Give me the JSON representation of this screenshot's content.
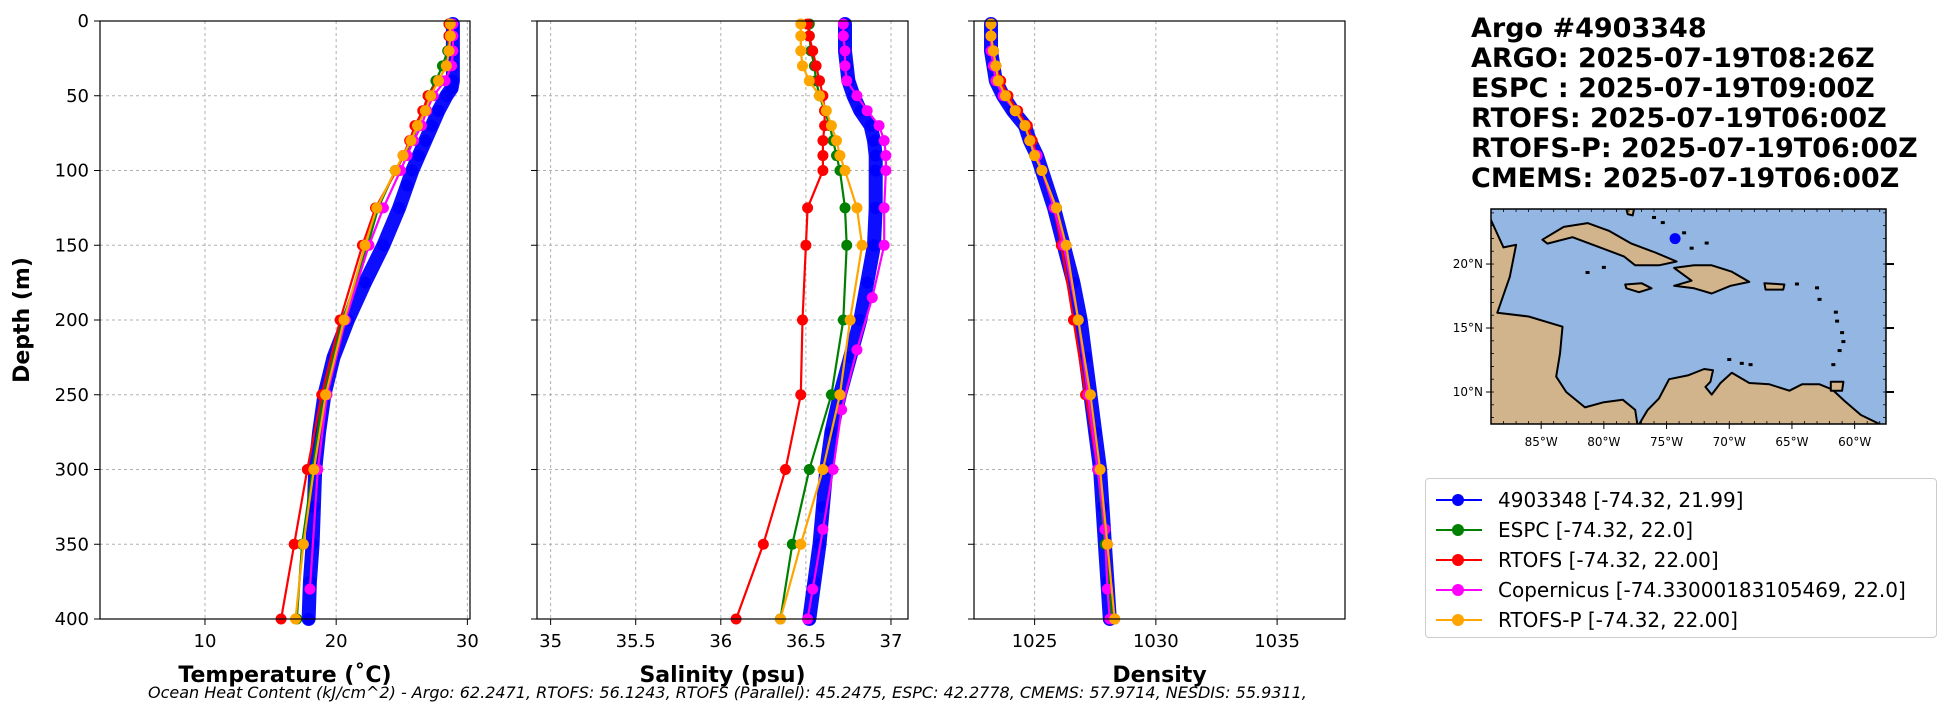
{
  "title_lines": [
    "Argo #4903348",
    "ARGO: 2025-07-19T08:26Z",
    "ESPC : 2025-07-19T09:00Z",
    "RTOFS: 2025-07-19T06:00Z",
    "RTOFS-P: 2025-07-19T06:00Z",
    "CMEMS: 2025-07-19T06:00Z"
  ],
  "footer_text": "Ocean Heat Content (kJ/cm^2) - Argo: 62.2471,  RTOFS: 56.1243,  RTOFS (Parallel): 45.2475,  ESPC: 42.2778,  CMEMS: 57.9714,  NESDIS: 55.9311,",
  "legend": [
    {
      "label": "4903348 [-74.32, 21.99]",
      "color": "#0000ff"
    },
    {
      "label": "ESPC [-74.32, 22.0]",
      "color": "#008000"
    },
    {
      "label": "RTOFS [-74.32, 22.00]",
      "color": "#ff0000"
    },
    {
      "label": "Copernicus [-74.33000183105469, 22.0]",
      "color": "#ff00ff"
    },
    {
      "label": "RTOFS-P [-74.32, 22.00]",
      "color": "#ffa500"
    }
  ],
  "map": {
    "lat_labels": [
      "20°N",
      "15°N",
      "10°N"
    ],
    "lon_labels": [
      "85°W",
      "80°W",
      "75°W",
      "70°W",
      "65°W",
      "60°W"
    ],
    "extent": {
      "lon": [
        -89,
        -57.5
      ],
      "lat": [
        7.5,
        24.3
      ]
    },
    "float_position": {
      "lon": -74.32,
      "lat": 21.99
    },
    "ocean_color": "#94b6e2",
    "land_color": "#d2b48c"
  },
  "chart_data": [
    {
      "type": "line",
      "title": "",
      "xlabel": "Temperature (˚C)",
      "ylabel": "Depth (m)",
      "xlim": [
        2,
        30.2
      ],
      "ylim": [
        400,
        0
      ],
      "xticks": [
        10,
        20,
        30
      ],
      "yticks": [
        0,
        50,
        100,
        150,
        200,
        250,
        300,
        350,
        400
      ],
      "series": [
        {
          "name": "4903348",
          "color": "#0000ff",
          "thick": true,
          "depth": [
            2,
            10,
            20,
            30,
            40,
            45,
            50,
            60,
            70,
            80,
            90,
            100,
            110,
            125,
            150,
            175,
            200,
            225,
            250,
            275,
            300,
            325,
            350,
            375,
            400
          ],
          "values": [
            28.9,
            28.9,
            28.9,
            28.9,
            28.9,
            28.8,
            28.4,
            27.8,
            27.3,
            26.8,
            26.3,
            25.8,
            25.4,
            24.8,
            23.6,
            22.2,
            20.9,
            19.8,
            19.1,
            18.7,
            18.4,
            18.3,
            18.2,
            18.0,
            17.9
          ]
        },
        {
          "name": "ESPC",
          "color": "#008000",
          "depth": [
            2,
            10,
            20,
            30,
            40,
            50,
            60,
            70,
            80,
            90,
            100,
            125,
            150,
            200,
            250,
            300,
            350,
            400
          ],
          "values": [
            28.6,
            28.6,
            28.5,
            28.1,
            27.6,
            27.0,
            26.7,
            26.2,
            25.8,
            25.2,
            24.5,
            23.2,
            22.4,
            20.5,
            19.0,
            18.2,
            17.4,
            17.0
          ]
        },
        {
          "name": "RTOFS",
          "color": "#ff0000",
          "depth": [
            2,
            10,
            20,
            30,
            40,
            50,
            60,
            70,
            80,
            90,
            100,
            125,
            150,
            200,
            250,
            300,
            350,
            400
          ],
          "values": [
            28.6,
            28.6,
            28.6,
            28.4,
            27.8,
            27.0,
            26.6,
            26.0,
            25.6,
            25.1,
            24.6,
            23.0,
            22.0,
            20.3,
            18.9,
            17.8,
            16.8,
            15.8
          ]
        },
        {
          "name": "Copernicus",
          "color": "#ff00ff",
          "depth": [
            2,
            10,
            20,
            30,
            40,
            50,
            60,
            70,
            80,
            90,
            100,
            125,
            150,
            200,
            250,
            300,
            380
          ],
          "values": [
            28.9,
            28.9,
            28.9,
            28.8,
            28.3,
            27.4,
            26.9,
            26.5,
            25.9,
            25.4,
            24.9,
            23.6,
            22.5,
            20.7,
            19.3,
            18.6,
            18.0
          ]
        },
        {
          "name": "RTOFS-P",
          "color": "#ffa500",
          "depth": [
            2,
            10,
            20,
            30,
            40,
            50,
            60,
            70,
            80,
            90,
            100,
            125,
            150,
            200,
            250,
            300,
            350,
            400
          ],
          "values": [
            28.7,
            28.7,
            28.6,
            28.4,
            27.8,
            27.2,
            26.8,
            26.2,
            25.7,
            25.1,
            24.5,
            23.1,
            22.2,
            20.6,
            19.2,
            18.3,
            17.5,
            16.9
          ]
        }
      ]
    },
    {
      "type": "line",
      "title": "",
      "xlabel": "Salinity (psu)",
      "ylabel": "",
      "xlim": [
        34.92,
        37.1
      ],
      "ylim": [
        400,
        0
      ],
      "xticks": [
        35.0,
        35.5,
        36.0,
        36.5,
        37.0
      ],
      "yticks": [
        0,
        50,
        100,
        150,
        200,
        250,
        300,
        350,
        400
      ],
      "series": [
        {
          "name": "4903348",
          "color": "#0000ff",
          "thick": true,
          "depth": [
            2,
            10,
            20,
            30,
            40,
            50,
            60,
            70,
            80,
            90,
            100,
            125,
            150,
            175,
            200,
            225,
            250,
            275,
            300,
            325,
            350,
            375,
            400
          ],
          "values": [
            36.73,
            36.73,
            36.73,
            36.74,
            36.75,
            36.78,
            36.82,
            36.88,
            36.9,
            36.91,
            36.91,
            36.91,
            36.9,
            36.86,
            36.82,
            36.76,
            36.7,
            36.65,
            36.62,
            36.6,
            36.58,
            36.55,
            36.52
          ]
        },
        {
          "name": "ESPC",
          "color": "#008000",
          "depth": [
            2,
            10,
            20,
            30,
            40,
            50,
            60,
            70,
            80,
            90,
            100,
            125,
            150,
            200,
            250,
            300,
            350,
            400
          ],
          "values": [
            36.52,
            36.52,
            36.53,
            36.55,
            36.56,
            36.58,
            36.61,
            36.64,
            36.66,
            36.68,
            36.7,
            36.73,
            36.74,
            36.72,
            36.65,
            36.52,
            36.42,
            36.35
          ]
        },
        {
          "name": "RTOFS",
          "color": "#ff0000",
          "depth": [
            2,
            10,
            20,
            30,
            40,
            50,
            60,
            70,
            80,
            90,
            100,
            125,
            150,
            200,
            250,
            300,
            350,
            400
          ],
          "values": [
            36.51,
            36.52,
            36.54,
            36.56,
            36.58,
            36.6,
            36.61,
            36.61,
            36.6,
            36.6,
            36.6,
            36.51,
            36.5,
            36.48,
            36.47,
            36.38,
            36.25,
            36.09
          ]
        },
        {
          "name": "Copernicus",
          "color": "#ff00ff",
          "depth": [
            2,
            10,
            20,
            30,
            40,
            50,
            60,
            70,
            80,
            90,
            100,
            125,
            150,
            185,
            220,
            260,
            300,
            340,
            380,
            400
          ],
          "values": [
            36.72,
            36.72,
            36.73,
            36.73,
            36.74,
            36.8,
            36.86,
            36.93,
            36.96,
            36.97,
            36.97,
            36.96,
            36.96,
            36.89,
            36.8,
            36.71,
            36.66,
            36.6,
            36.54,
            36.51
          ]
        },
        {
          "name": "RTOFS-P",
          "color": "#ffa500",
          "depth": [
            2,
            10,
            20,
            30,
            40,
            50,
            60,
            70,
            80,
            90,
            100,
            125,
            150,
            200,
            250,
            300,
            350,
            400
          ],
          "values": [
            36.47,
            36.47,
            36.47,
            36.48,
            36.52,
            36.58,
            36.62,
            36.65,
            36.68,
            36.7,
            36.73,
            36.8,
            36.83,
            36.76,
            36.7,
            36.6,
            36.47,
            36.35
          ]
        }
      ]
    },
    {
      "type": "line",
      "title": "",
      "xlabel": "Density",
      "ylabel": "",
      "xlim": [
        1022.5,
        1037.8
      ],
      "ylim": [
        400,
        0
      ],
      "xticks": [
        1025,
        1030,
        1035
      ],
      "yticks": [
        0,
        50,
        100,
        150,
        200,
        250,
        300,
        350,
        400
      ],
      "series": [
        {
          "name": "4903348",
          "color": "#0000ff",
          "thick": true,
          "depth": [
            2,
            10,
            20,
            30,
            40,
            50,
            60,
            70,
            80,
            90,
            100,
            125,
            150,
            175,
            200,
            225,
            250,
            275,
            300,
            325,
            350,
            375,
            400
          ],
          "values": [
            1023.2,
            1023.2,
            1023.2,
            1023.3,
            1023.4,
            1023.7,
            1024.1,
            1024.6,
            1024.8,
            1025.1,
            1025.3,
            1025.8,
            1026.2,
            1026.6,
            1026.9,
            1027.1,
            1027.3,
            1027.5,
            1027.7,
            1027.8,
            1027.9,
            1028.0,
            1028.1
          ]
        },
        {
          "name": "ESPC",
          "color": "#008000",
          "depth": [
            2,
            10,
            20,
            30,
            40,
            50,
            60,
            70,
            80,
            90,
            100,
            125,
            150,
            200,
            250,
            300,
            350,
            400
          ],
          "values": [
            1023.2,
            1023.2,
            1023.3,
            1023.4,
            1023.5,
            1023.8,
            1024.2,
            1024.6,
            1024.8,
            1025.0,
            1025.3,
            1025.9,
            1026.2,
            1026.8,
            1027.2,
            1027.6,
            1027.9,
            1028.2
          ]
        },
        {
          "name": "RTOFS",
          "color": "#ff0000",
          "depth": [
            2,
            10,
            20,
            30,
            40,
            50,
            60,
            70,
            80,
            90,
            100,
            125,
            150,
            200,
            250,
            300,
            350,
            400
          ],
          "values": [
            1023.2,
            1023.2,
            1023.3,
            1023.4,
            1023.6,
            1023.9,
            1024.3,
            1024.7,
            1024.9,
            1025.1,
            1025.3,
            1025.8,
            1026.1,
            1026.6,
            1027.1,
            1027.6,
            1028.0,
            1028.3
          ]
        },
        {
          "name": "Copernicus",
          "color": "#ff00ff",
          "depth": [
            2,
            10,
            20,
            30,
            40,
            50,
            60,
            70,
            80,
            90,
            100,
            125,
            150,
            200,
            250,
            300,
            340,
            380,
            400
          ],
          "values": [
            1023.2,
            1023.2,
            1023.2,
            1023.3,
            1023.4,
            1023.7,
            1024.2,
            1024.6,
            1024.8,
            1025.1,
            1025.3,
            1025.8,
            1026.2,
            1026.8,
            1027.2,
            1027.6,
            1027.9,
            1028.0,
            1028.1
          ]
        },
        {
          "name": "RTOFS-P",
          "color": "#ffa500",
          "depth": [
            2,
            10,
            20,
            30,
            40,
            50,
            60,
            70,
            80,
            90,
            100,
            125,
            150,
            200,
            250,
            300,
            350,
            400
          ],
          "values": [
            1023.2,
            1023.2,
            1023.3,
            1023.4,
            1023.5,
            1023.8,
            1024.2,
            1024.6,
            1024.8,
            1025.0,
            1025.3,
            1025.9,
            1026.3,
            1026.8,
            1027.3,
            1027.7,
            1028.0,
            1028.3
          ]
        }
      ]
    }
  ]
}
